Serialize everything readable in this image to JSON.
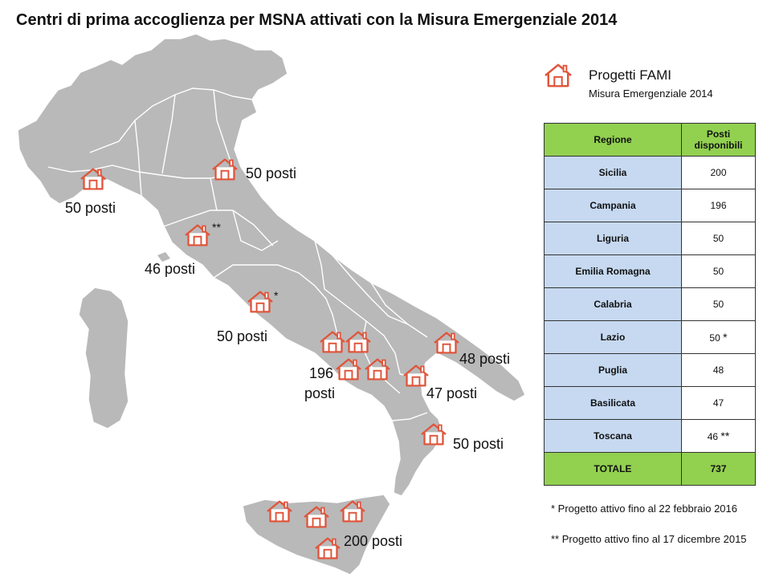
{
  "title": "Centri di prima accoglienza per MSNA attivati con la Misura Emergenziale 2014",
  "legend": {
    "icon": "house-icon",
    "title": "Progetti FAMI",
    "subtitle": "Misura Emergenziale 2014"
  },
  "map_labels": {
    "liguria": "50 posti",
    "emilia": "50 posti",
    "toscana": "46 posti",
    "toscana_mark": "**",
    "lazio": "50 posti",
    "lazio_mark": "*",
    "campania_1": "196",
    "campania_2": "posti",
    "basilicata": "47 posti",
    "puglia": "48 posti",
    "calabria": "50 posti",
    "sicilia": "200 posti"
  },
  "table": {
    "header_region": "Regione",
    "header_posts_1": "Posti",
    "header_posts_2": "disponibili",
    "rows": [
      {
        "region": "Sicilia",
        "value": "200",
        "mark": ""
      },
      {
        "region": "Campania",
        "value": "196",
        "mark": ""
      },
      {
        "region": "Liguria",
        "value": "50",
        "mark": ""
      },
      {
        "region": "Emilia Romagna",
        "value": "50",
        "mark": ""
      },
      {
        "region": "Calabria",
        "value": "50",
        "mark": ""
      },
      {
        "region": "Lazio",
        "value": "50",
        "mark": "*"
      },
      {
        "region": "Puglia",
        "value": "48",
        "mark": ""
      },
      {
        "region": "Basilicata",
        "value": "47",
        "mark": ""
      },
      {
        "region": "Toscana",
        "value": "46",
        "mark": "**"
      }
    ],
    "total_label": "TOTALE",
    "total_value": "737"
  },
  "notes": {
    "note1": "* Progetto attivo fino al 22 febbraio 2016",
    "note2": "** Progetto attivo fino al 17 dicembre 2015"
  },
  "colors": {
    "land": "#b9b9b9",
    "borders": "#ffffff",
    "icon": "#e0543a",
    "table_header": "#92d050",
    "table_region": "#c6d9f1"
  }
}
